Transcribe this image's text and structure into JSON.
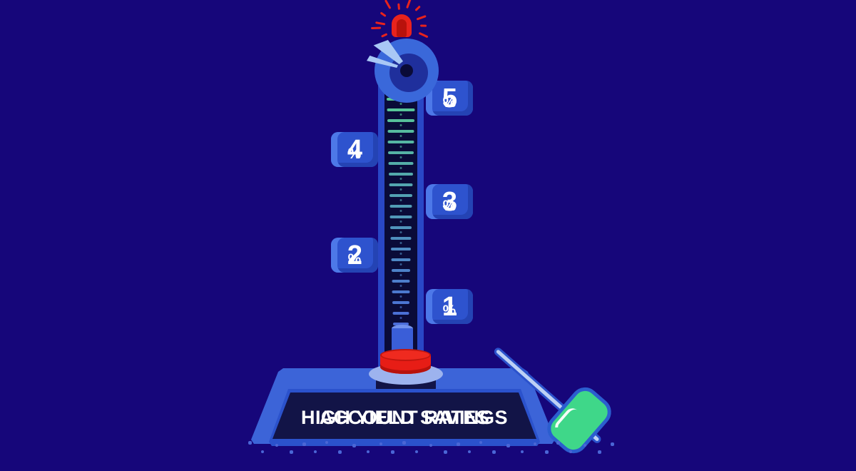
{
  "title": {
    "line1": "HIGH YIELD SAVINGS",
    "line2": "ACCOUNT RATES"
  },
  "rate_labels": [
    {
      "value": "5",
      "unit": "%",
      "side": "right"
    },
    {
      "value": "4",
      "unit": "%",
      "side": "left"
    },
    {
      "value": "3",
      "unit": "%",
      "side": "right"
    },
    {
      "value": "2",
      "unit": "%",
      "side": "left"
    },
    {
      "value": "1",
      "unit": "%",
      "side": "right"
    }
  ],
  "scale": {
    "min_percent": 1,
    "max_percent": 5,
    "label_values": [
      5,
      4,
      3,
      2,
      1
    ],
    "tick_count": 22,
    "tick_color_top": "#58c995",
    "tick_color_bottom": "#4a6cd8"
  },
  "icons": {
    "siren": "siren-light-icon",
    "bell": "strike-bell-icon",
    "mallet": "mallet-icon",
    "puck": "puck-icon",
    "thermometer": "high-striker-tower"
  },
  "colors": {
    "bg": "#16067a",
    "tower_wall": "#2947c6",
    "tower_inner": "#0a0b38",
    "label_bg": "#2e53ce",
    "label_light": "#4d78e8",
    "label_dark": "#2443b4",
    "red": "#e8231d",
    "red_bright": "#e71d16",
    "red_dark": "#b8120c",
    "mint_green": "#3fd789",
    "bell_blue": "#3a68da",
    "bell_inner": "#1f2f9c",
    "shine_blue": "#a9c8f5",
    "handle_blue": "#bdd1f5",
    "outline_blue": "#2b52cc",
    "base_top": "#3c64d8",
    "panel_navy": "#121447",
    "pedestal_disc": "#9db3ee",
    "piston": "#3a5ed8",
    "piston_top": "#7291ec",
    "ground_dot": "#4a66d6",
    "text_white": "#ffffff"
  }
}
